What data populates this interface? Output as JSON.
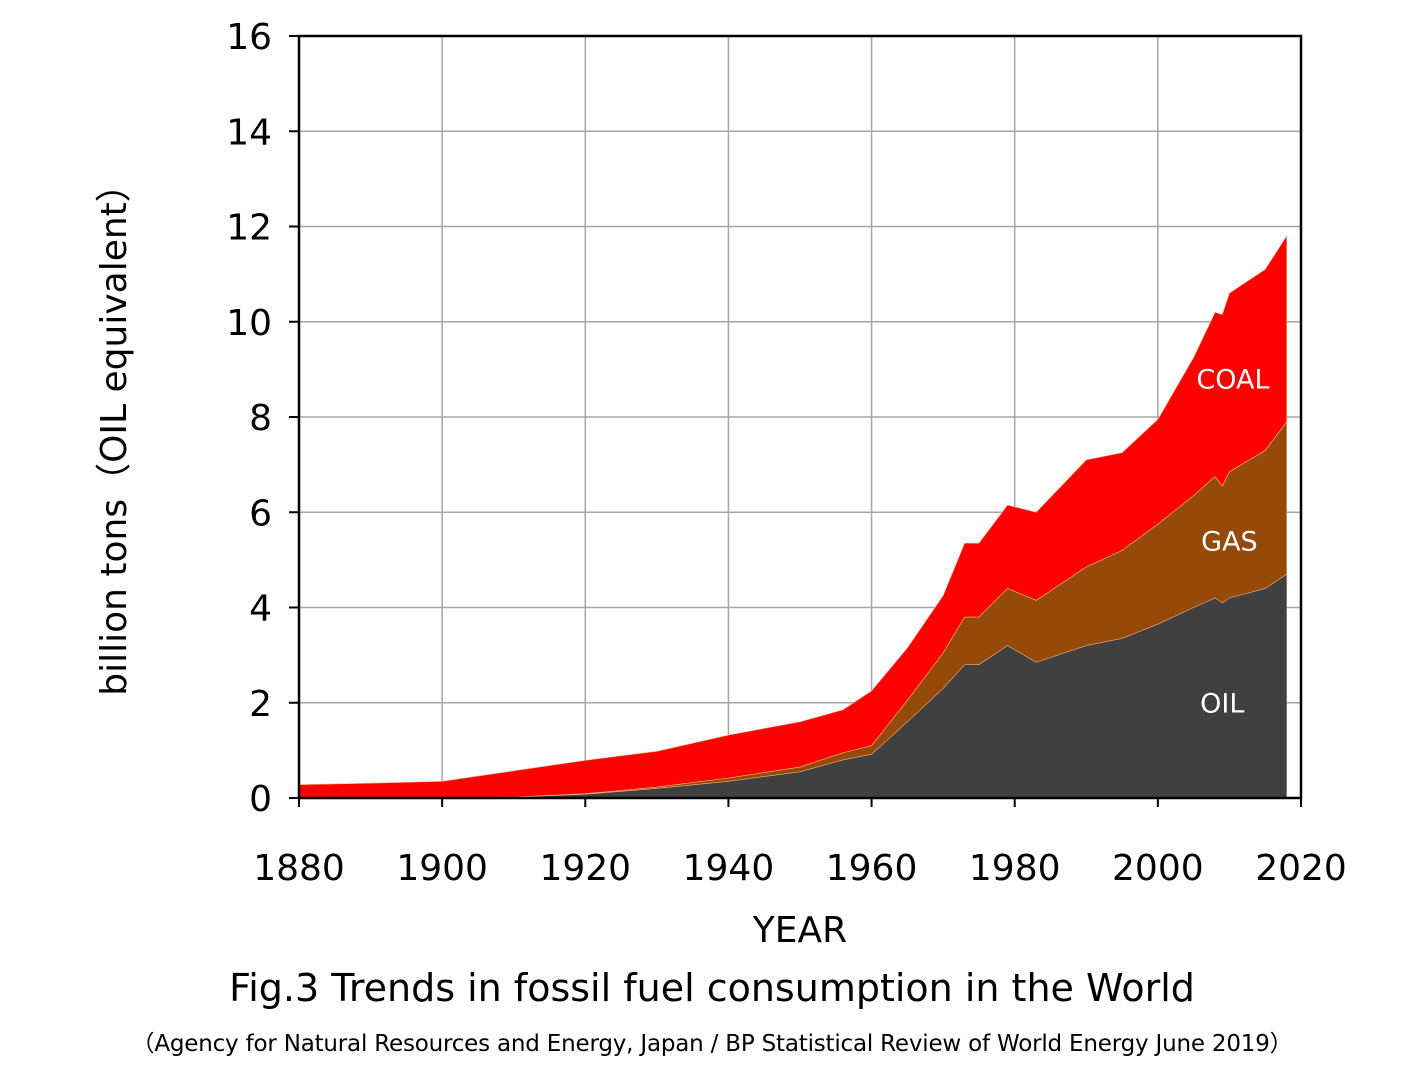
{
  "figure": {
    "caption": "Fig.3 Trends in fossil fuel consumption in the World",
    "source": "（Agency for Natural Resources and Energy, Japan / BP Statistical Review of World Energy June 2019）"
  },
  "chart_data": {
    "type": "area",
    "stacked": true,
    "xlabel": "YEAR",
    "ylabel": "billion tons（OIL equivalent）",
    "xlim": [
      1880,
      2020
    ],
    "ylim": [
      0,
      16
    ],
    "xticks": [
      "1880",
      "1900",
      "1920",
      "1940",
      "1960",
      "1980",
      "2000",
      "2020"
    ],
    "yticks": [
      "0",
      "2",
      "4",
      "6",
      "8",
      "10",
      "12",
      "14",
      "16"
    ],
    "grid": true,
    "x": [
      1880,
      1890,
      1900,
      1910,
      1920,
      1930,
      1940,
      1950,
      1956,
      1960,
      1965,
      1970,
      1973,
      1975,
      1979,
      1983,
      1990,
      1995,
      2000,
      2005,
      2008,
      2009,
      2010,
      2015,
      2018
    ],
    "series": [
      {
        "name": "OIL",
        "color": "#404040",
        "values": [
          0.0,
          0.0,
          0.0,
          0.02,
          0.08,
          0.2,
          0.35,
          0.55,
          0.8,
          0.92,
          1.6,
          2.3,
          2.8,
          2.8,
          3.2,
          2.85,
          3.2,
          3.35,
          3.65,
          4.0,
          4.2,
          4.1,
          4.2,
          4.4,
          4.7
        ]
      },
      {
        "name": "GAS",
        "color": "#954a09",
        "values": [
          0.0,
          0.0,
          0.0,
          0.0,
          0.01,
          0.03,
          0.07,
          0.1,
          0.15,
          0.18,
          0.45,
          0.75,
          1.0,
          1.0,
          1.2,
          1.3,
          1.65,
          1.85,
          2.1,
          2.35,
          2.55,
          2.45,
          2.65,
          2.9,
          3.2
        ]
      },
      {
        "name": "COAL",
        "color": "#ff0000",
        "values": [
          0.28,
          0.31,
          0.35,
          0.55,
          0.7,
          0.75,
          0.9,
          0.95,
          0.9,
          1.15,
          1.1,
          1.2,
          1.55,
          1.55,
          1.75,
          1.85,
          2.25,
          2.05,
          2.2,
          2.9,
          3.45,
          3.6,
          3.75,
          3.8,
          3.9
        ]
      }
    ],
    "annotations": [
      {
        "text": "COAL",
        "x": 2010.5,
        "y": 8.6
      },
      {
        "text": "GAS",
        "x": 2010,
        "y": 5.2
      },
      {
        "text": "OIL",
        "x": 2009,
        "y": 1.8
      }
    ]
  }
}
